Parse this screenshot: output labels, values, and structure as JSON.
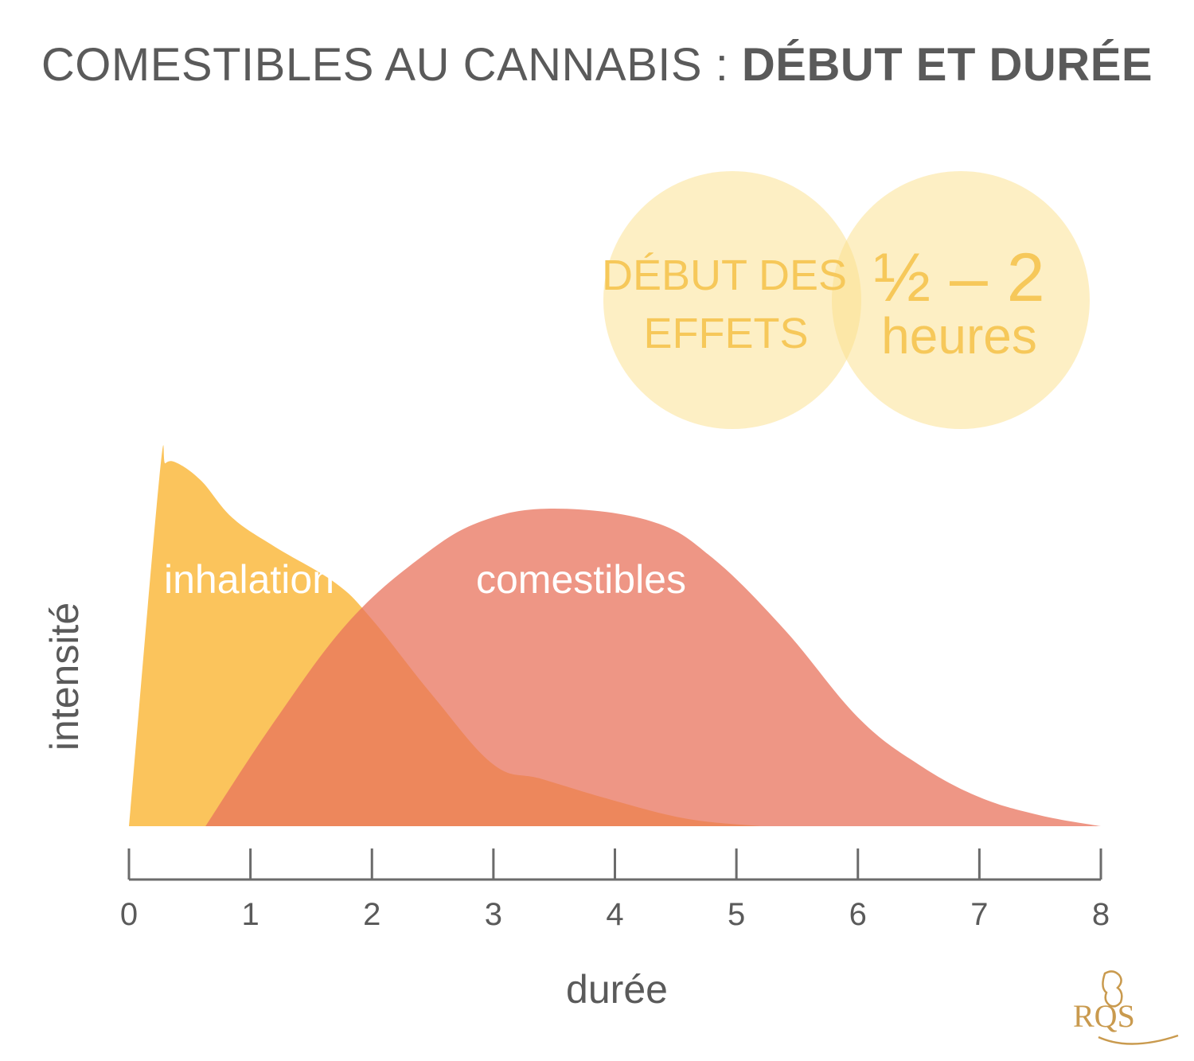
{
  "title": {
    "regular": "COMESTIBLES AU CANNABIS : ",
    "bold": "DÉBUT ET DURÉE"
  },
  "callout": {
    "left_line1": "DÉBUT DES",
    "left_line2": "EFFETS",
    "right_line1": "½ – 2",
    "right_line2": "heures"
  },
  "logo": {
    "text": "RQS"
  },
  "chart_data": {
    "type": "area",
    "xlabel": "durée",
    "ylabel": "intensité",
    "xlim": [
      0,
      8
    ],
    "ylim": [
      0,
      1
    ],
    "x_ticks": [
      "0",
      "1",
      "2",
      "3",
      "4",
      "5",
      "6",
      "7",
      "8"
    ],
    "series": [
      {
        "name": "inhalation",
        "color": "#fbc45c",
        "x": [
          0,
          0.25,
          0.3,
          0.4,
          0.6,
          0.85,
          1.2,
          1.7,
          2.0,
          2.5,
          3.0,
          3.4,
          4.0,
          4.6,
          5.2
        ],
        "y": [
          0,
          0.96,
          1.0,
          1.0,
          0.95,
          0.85,
          0.77,
          0.67,
          0.57,
          0.36,
          0.17,
          0.13,
          0.07,
          0.02,
          0
        ]
      },
      {
        "name": "comestibles",
        "color": "#e8735c",
        "x": [
          0.63,
          1.2,
          1.8,
          2.4,
          2.9,
          3.5,
          4.3,
          4.8,
          5.4,
          6.0,
          6.5,
          7.0,
          7.5,
          8.0
        ],
        "y": [
          0,
          0.29,
          0.56,
          0.74,
          0.84,
          0.875,
          0.84,
          0.74,
          0.54,
          0.3,
          0.17,
          0.08,
          0.03,
          0
        ]
      }
    ]
  }
}
